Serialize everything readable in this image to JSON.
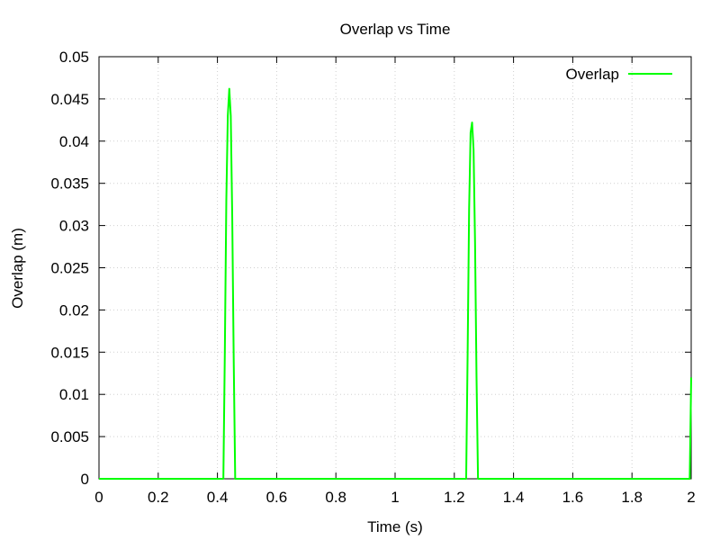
{
  "chart_data": {
    "type": "line",
    "title": "Overlap vs Time",
    "xlabel": "Time (s)",
    "ylabel": "Overlap (m)",
    "xlim": [
      0,
      2
    ],
    "ylim": [
      0,
      0.05
    ],
    "xticks": [
      "0",
      "0.2",
      "0.4",
      "0.6",
      "0.8",
      "1",
      "1.2",
      "1.4",
      "1.6",
      "1.8",
      "2"
    ],
    "yticks": [
      "0",
      "0.005",
      "0.01",
      "0.015",
      "0.02",
      "0.025",
      "0.03",
      "0.035",
      "0.04",
      "0.045",
      "0.05"
    ],
    "grid": true,
    "legend_position": "top-right",
    "series": [
      {
        "name": "Overlap",
        "color": "#00ff00",
        "x": [
          0,
          0.42,
          0.425,
          0.43,
          0.435,
          0.44,
          0.445,
          0.45,
          0.455,
          0.46,
          0.465,
          1.24,
          1.245,
          1.25,
          1.255,
          1.26,
          1.265,
          1.27,
          1.275,
          1.28,
          1.995,
          2.0
        ],
        "y": [
          0,
          0,
          0.015,
          0.033,
          0.043,
          0.0462,
          0.043,
          0.031,
          0.014,
          0,
          0,
          0,
          0.015,
          0.032,
          0.041,
          0.0422,
          0.039,
          0.028,
          0.012,
          0,
          0,
          0.012
        ]
      }
    ]
  }
}
